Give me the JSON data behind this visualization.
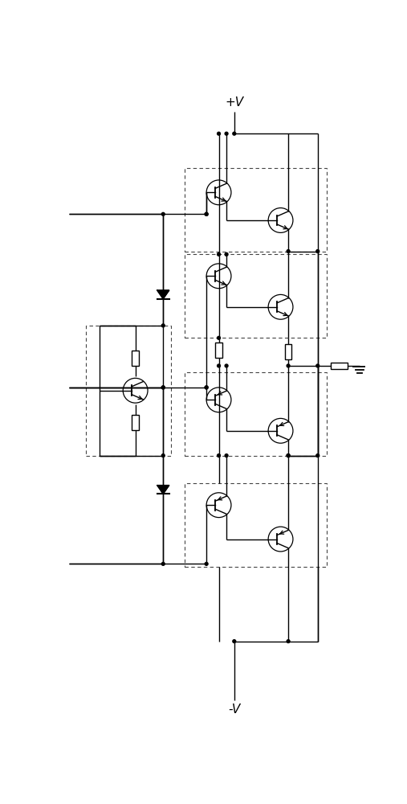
{
  "bg_color": "#ffffff",
  "line_color": "#000000",
  "figsize": [
    5.07,
    10.0
  ],
  "dpi": 100,
  "vplus_label": "+V",
  "vminus_label": "-V"
}
